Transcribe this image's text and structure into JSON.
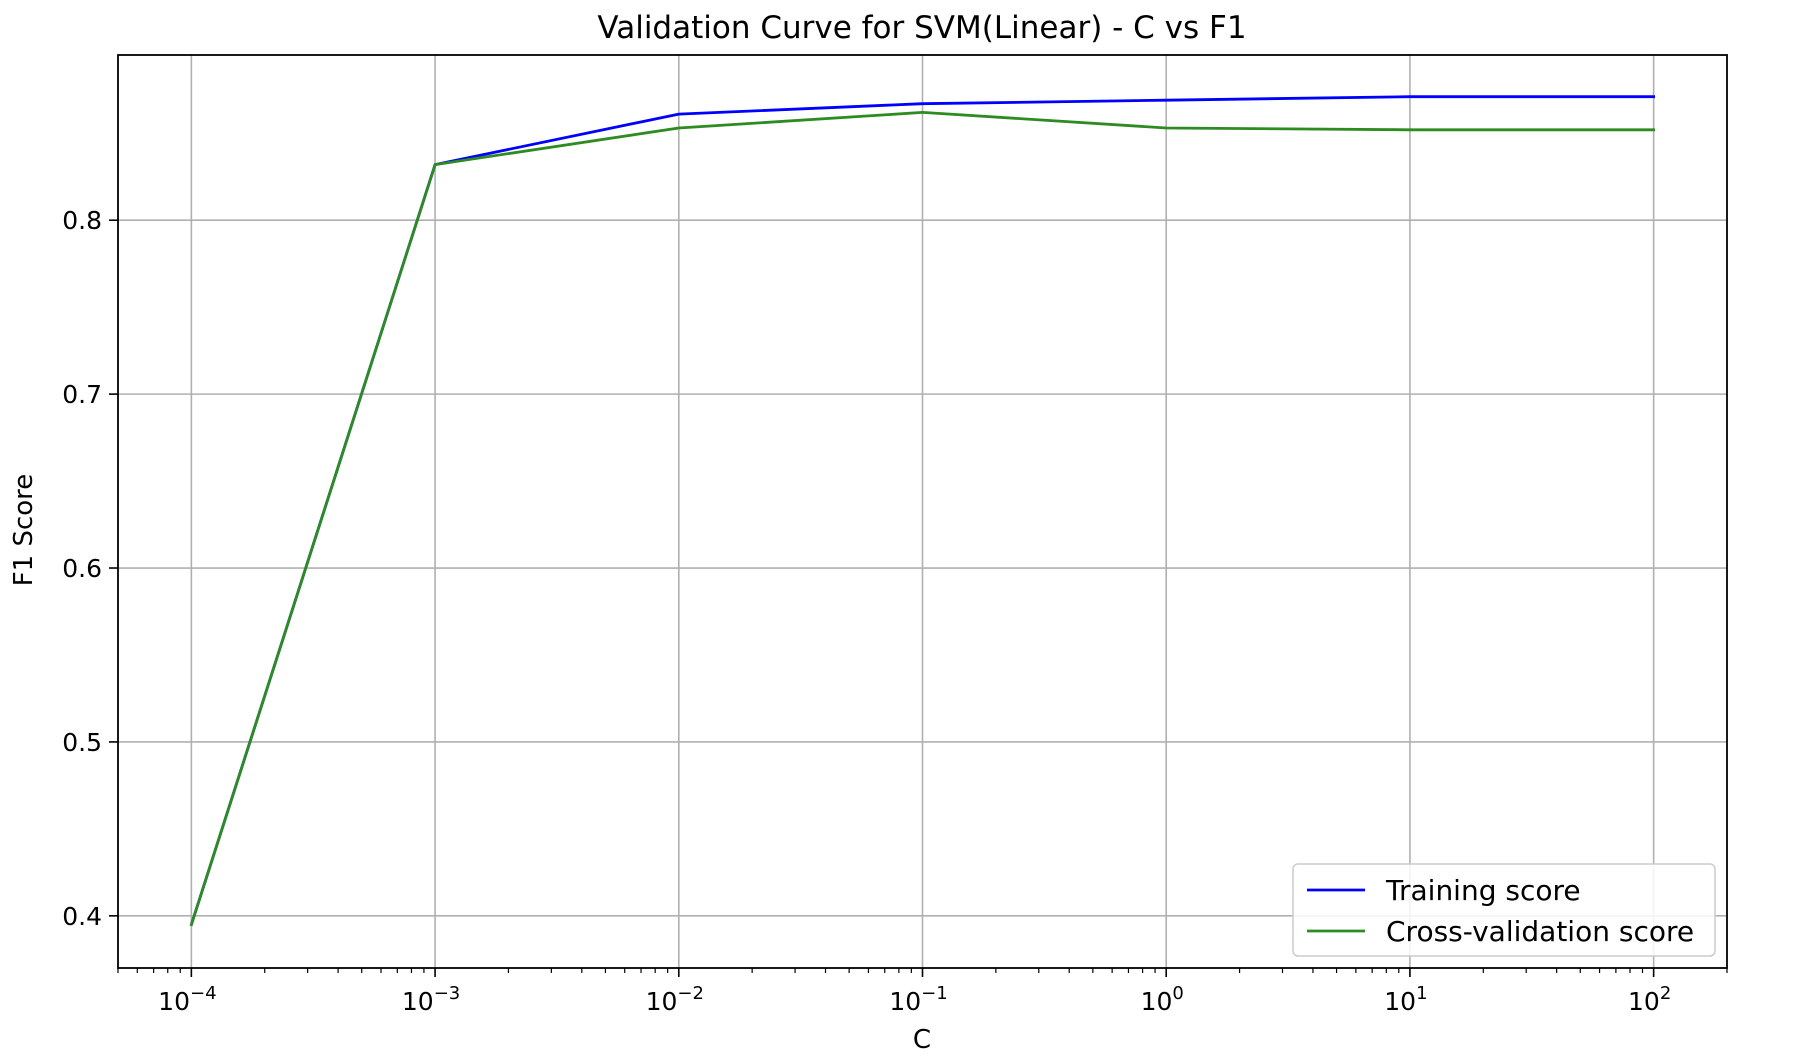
{
  "chart_data": {
    "type": "line",
    "title": "Validation Curve for SVM(Linear) - C vs F1",
    "xlabel": "C",
    "ylabel": "F1 Score",
    "xscale": "log",
    "xlim": [
      5e-05,
      200
    ],
    "ylim": [
      0.37,
      0.895
    ],
    "grid": true,
    "legend_position": "lower-right",
    "x": [
      0.0001,
      0.001,
      0.01,
      0.1,
      1,
      10,
      100
    ],
    "x_ticks": [
      {
        "value": 0.0001,
        "base": "10",
        "exp": "−4"
      },
      {
        "value": 0.001,
        "base": "10",
        "exp": "−3"
      },
      {
        "value": 0.01,
        "base": "10",
        "exp": "−2"
      },
      {
        "value": 0.1,
        "base": "10",
        "exp": "−1"
      },
      {
        "value": 1,
        "base": "10",
        "exp": "0"
      },
      {
        "value": 10,
        "base": "10",
        "exp": "1"
      },
      {
        "value": 100,
        "base": "10",
        "exp": "2"
      }
    ],
    "y_ticks": [
      {
        "value": 0.4,
        "label": "0.4"
      },
      {
        "value": 0.5,
        "label": "0.5"
      },
      {
        "value": 0.6,
        "label": "0.6"
      },
      {
        "value": 0.7,
        "label": "0.7"
      },
      {
        "value": 0.8,
        "label": "0.8"
      }
    ],
    "series": [
      {
        "name": "Training score",
        "color": "#0000ff",
        "values": [
          0.395,
          0.832,
          0.861,
          0.867,
          0.869,
          0.871,
          0.871
        ]
      },
      {
        "name": "Cross-validation score",
        "color": "#2e8b22",
        "values": [
          0.395,
          0.832,
          0.853,
          0.862,
          0.853,
          0.852,
          0.852
        ]
      }
    ]
  }
}
